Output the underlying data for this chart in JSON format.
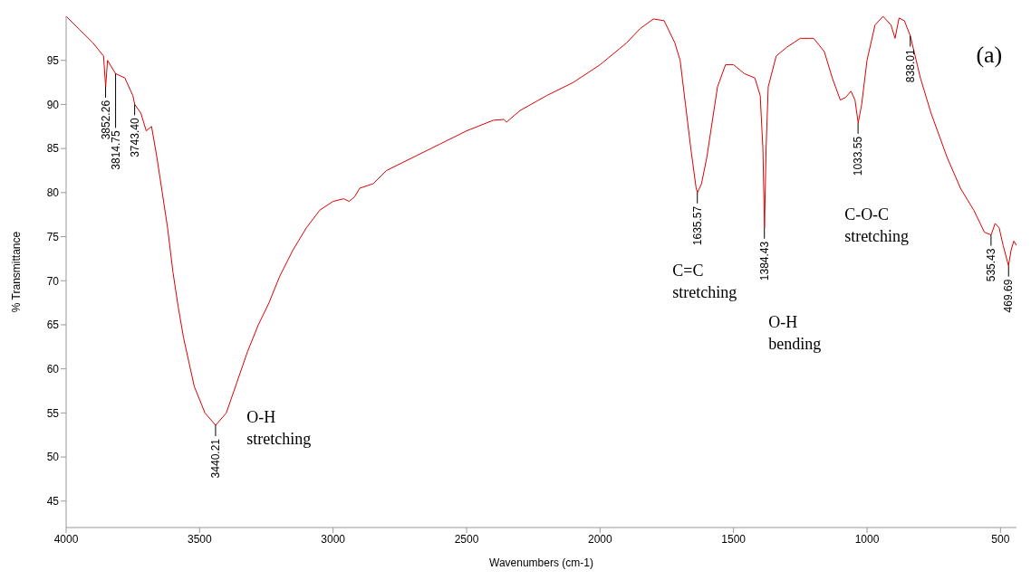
{
  "chart_data": {
    "type": "line",
    "xlabel": "Wavenumbers (cm-1)",
    "ylabel": "% Transmittance",
    "xlim": [
      4000,
      440
    ],
    "ylim": [
      42,
      100
    ],
    "xticks": [
      4000,
      3500,
      3000,
      2500,
      2000,
      1500,
      1000,
      500
    ],
    "yticks": [
      45,
      50,
      55,
      60,
      65,
      70,
      75,
      80,
      85,
      90,
      95
    ],
    "grid": false,
    "legend": false,
    "marker": "none",
    "line_style": "solid",
    "x": [
      4000,
      3950,
      3900,
      3860,
      3852,
      3845,
      3815,
      3780,
      3750,
      3743,
      3720,
      3700,
      3680,
      3660,
      3640,
      3620,
      3600,
      3580,
      3560,
      3520,
      3480,
      3440,
      3400,
      3360,
      3320,
      3280,
      3240,
      3200,
      3150,
      3100,
      3050,
      3000,
      2960,
      2940,
      2920,
      2900,
      2850,
      2800,
      2700,
      2600,
      2500,
      2400,
      2360,
      2350,
      2300,
      2200,
      2100,
      2000,
      1900,
      1850,
      1800,
      1760,
      1720,
      1700,
      1680,
      1660,
      1640,
      1635,
      1620,
      1600,
      1580,
      1560,
      1530,
      1500,
      1460,
      1420,
      1400,
      1390,
      1384,
      1378,
      1370,
      1340,
      1300,
      1250,
      1200,
      1160,
      1130,
      1100,
      1080,
      1060,
      1045,
      1033,
      1020,
      1000,
      970,
      940,
      910,
      895,
      880,
      860,
      838,
      800,
      760,
      700,
      650,
      600,
      560,
      535,
      520,
      505,
      490,
      470,
      460,
      450,
      440
    ],
    "series": [
      {
        "color": "#dd0000",
        "values": [
          100,
          98.5,
          97,
          95.5,
          92,
          95,
          93.5,
          93,
          91,
          90,
          89,
          87,
          87.5,
          84,
          80,
          76,
          71,
          67,
          63.5,
          58,
          55,
          53.6,
          55,
          58.5,
          62,
          65,
          67.5,
          70.5,
          73.5,
          76,
          78,
          79,
          79.3,
          79,
          79.5,
          80.5,
          81,
          82.5,
          84,
          85.5,
          87,
          88.2,
          88.3,
          88,
          89.3,
          91,
          92.5,
          94.5,
          97,
          98.6,
          99.7,
          99.5,
          97,
          95,
          90,
          85,
          80.5,
          80,
          81,
          84,
          88,
          92,
          94.5,
          94.5,
          93.5,
          93,
          91,
          85,
          76,
          85,
          92,
          95.5,
          96.5,
          97.5,
          97.5,
          96,
          93,
          90.5,
          90.8,
          91.5,
          90.5,
          87.9,
          90,
          95,
          99,
          100,
          99,
          97.5,
          99.8,
          99.5,
          97.8,
          93,
          89,
          84,
          80.5,
          78,
          75.5,
          75.2,
          76.5,
          76,
          74,
          71.7,
          73.5,
          74.5,
          74
        ]
      }
    ],
    "annotations": [
      {
        "text": "3852.26",
        "x": 3852.26,
        "y": 92
      },
      {
        "text": "3814.75",
        "x": 3814.75,
        "y": 93.5
      },
      {
        "text": "3743.40",
        "x": 3743.4,
        "y": 90
      },
      {
        "text": "3440.21",
        "x": 3440.21,
        "y": 53.6
      },
      {
        "text": "1635.57",
        "x": 1635.57,
        "y": 80
      },
      {
        "text": "1384.43",
        "x": 1384.43,
        "y": 76
      },
      {
        "text": "1033.55",
        "x": 1033.55,
        "y": 87.9
      },
      {
        "text": "838.01",
        "x": 838.01,
        "y": 97.8
      },
      {
        "text": "535.43",
        "x": 535.43,
        "y": 75.2
      },
      {
        "text": "469.69",
        "x": 469.69,
        "y": 71.7
      },
      "O-H stretching",
      "C=C stretching",
      "O-H bending",
      "C-O-C stretching",
      "(a)"
    ]
  }
}
